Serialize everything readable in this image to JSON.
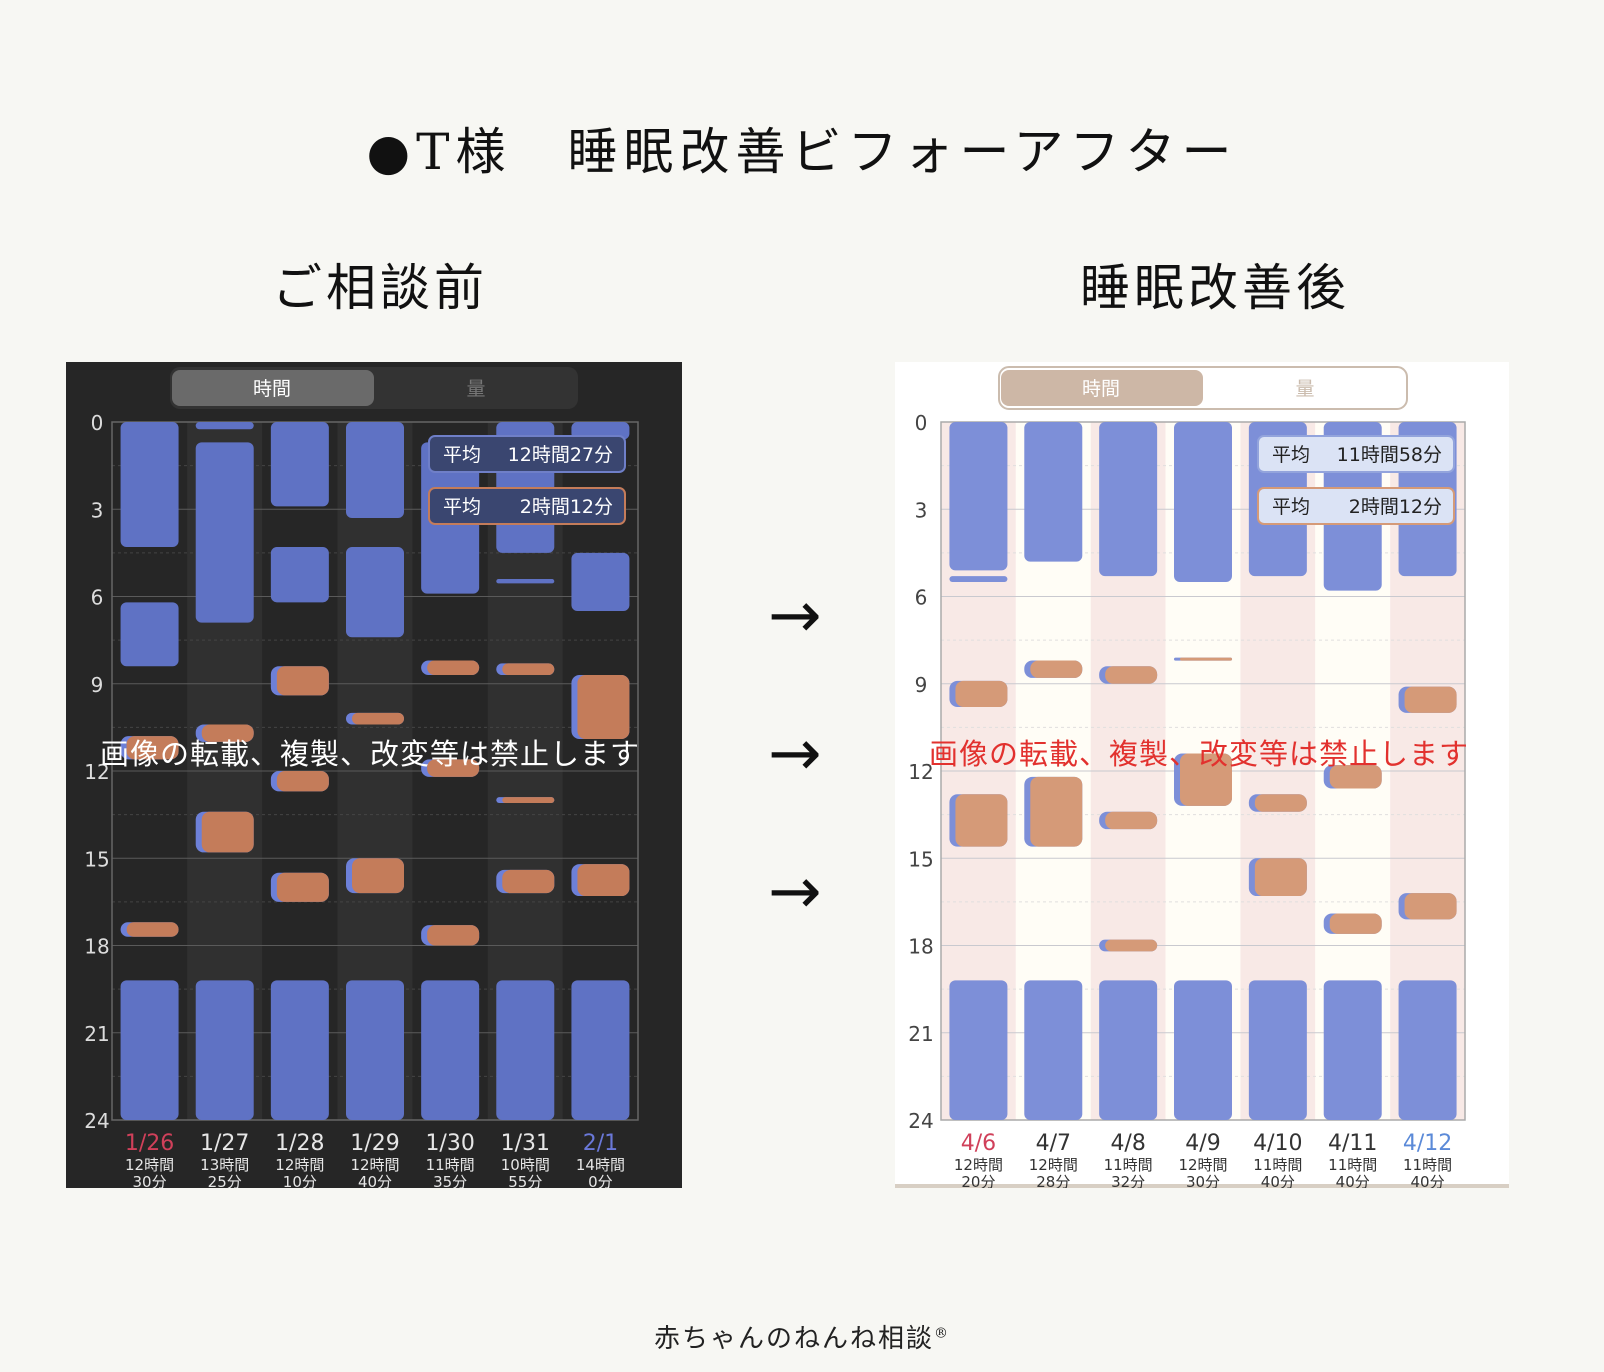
{
  "title": "●T様　睡眠改善ビフォーアフター",
  "before_label": "ご相談前",
  "after_label": "睡眠改善後",
  "watermark": "画像の転載、複製、改変等は禁止します",
  "footer": "赤ちゃんのねんね相談",
  "footer_mark": "®",
  "arrow_glyph": "→",
  "chart_data": [
    {
      "type": "bar",
      "theme": "dark",
      "tabs": [
        "時間",
        "量"
      ],
      "active_tab": "時間",
      "y_ticks": [
        "0",
        "3",
        "6",
        "9",
        "12",
        "15",
        "18",
        "21",
        "24"
      ],
      "ylim": [
        0,
        24
      ],
      "avg_sleep": {
        "label": "平均",
        "value": "12時間27分"
      },
      "avg_feed": {
        "label": "平均",
        "value": "2時間12分"
      },
      "colors": {
        "sleep": "#5f72c4",
        "feed": "#c47c5a",
        "feed_edge": "#6d80d8",
        "holiday_red": "#d0405a",
        "weekend_blue": "#6a78d8"
      },
      "days": [
        {
          "date": "1/26",
          "total": [
            "12時間",
            "30分"
          ],
          "date_color": "red",
          "sleep": [
            [
              0,
              4.3
            ],
            [
              6.2,
              8.4
            ],
            [
              19.2,
              24
            ]
          ],
          "feed": [
            [
              10.8,
              11.6
            ],
            [
              17.2,
              17.7
            ]
          ]
        },
        {
          "date": "1/27",
          "total": [
            "13時間",
            "25分"
          ],
          "date_color": "normal",
          "sleep": [
            [
              0,
              0.25
            ],
            [
              0.7,
              6.9
            ],
            [
              19.2,
              24
            ]
          ],
          "feed": [
            [
              10.4,
              11.0
            ],
            [
              13.4,
              14.8
            ]
          ]
        },
        {
          "date": "1/28",
          "total": [
            "12時間",
            "10分"
          ],
          "date_color": "normal",
          "sleep": [
            [
              0,
              2.9
            ],
            [
              4.3,
              6.2
            ],
            [
              19.2,
              24
            ]
          ],
          "feed": [
            [
              8.4,
              9.4
            ],
            [
              12.0,
              12.7
            ],
            [
              15.5,
              16.5
            ]
          ]
        },
        {
          "date": "1/29",
          "total": [
            "12時間",
            "40分"
          ],
          "date_color": "normal",
          "sleep": [
            [
              0,
              3.3
            ],
            [
              4.3,
              7.4
            ],
            [
              19.2,
              24
            ]
          ],
          "feed": [
            [
              10.0,
              10.4
            ],
            [
              15.0,
              16.2
            ]
          ]
        },
        {
          "date": "1/30",
          "total": [
            "11時間",
            "35分"
          ],
          "date_color": "normal",
          "sleep": [
            [
              0.7,
              5.9
            ],
            [
              19.2,
              24
            ]
          ],
          "feed": [
            [
              8.2,
              8.7
            ],
            [
              11.6,
              12.2
            ],
            [
              17.3,
              18.0
            ]
          ]
        },
        {
          "date": "1/31",
          "total": [
            "10時間",
            "55分"
          ],
          "date_color": "normal",
          "sleep": [
            [
              0,
              4.5
            ],
            [
              5.4,
              5.55
            ],
            [
              19.2,
              24
            ]
          ],
          "feed": [
            [
              8.3,
              8.7
            ],
            [
              12.9,
              13.1
            ],
            [
              15.4,
              16.2
            ]
          ]
        },
        {
          "date": "2/1",
          "total": [
            "14時間",
            "0分"
          ],
          "date_color": "blue",
          "sleep": [
            [
              0,
              0.6
            ],
            [
              4.5,
              6.5
            ],
            [
              19.2,
              24
            ]
          ],
          "feed": [
            [
              8.7,
              10.9
            ],
            [
              15.2,
              16.3
            ]
          ]
        }
      ]
    },
    {
      "type": "bar",
      "theme": "light",
      "tabs": [
        "時間",
        "量"
      ],
      "active_tab": "時間",
      "y_ticks": [
        "0",
        "3",
        "6",
        "9",
        "12",
        "15",
        "18",
        "21",
        "24"
      ],
      "ylim": [
        0,
        24
      ],
      "avg_sleep": {
        "label": "平均",
        "value": "11時間58分"
      },
      "avg_feed": {
        "label": "平均",
        "value": "2時間12分"
      },
      "colors": {
        "sleep": "#7d8fd8",
        "feed": "#d59a78",
        "feed_edge": "#7d8fd8",
        "holiday_red": "#d0405a",
        "weekend_blue": "#5b8ad8"
      },
      "days": [
        {
          "date": "4/6",
          "total": [
            "12時間",
            "20分"
          ],
          "date_color": "red",
          "sleep": [
            [
              0,
              5.1
            ],
            [
              5.3,
              5.5
            ],
            [
              19.2,
              24
            ]
          ],
          "feed": [
            [
              8.9,
              9.8
            ],
            [
              12.8,
              14.6
            ]
          ]
        },
        {
          "date": "4/7",
          "total": [
            "12時間",
            "28分"
          ],
          "date_color": "normal",
          "sleep": [
            [
              0,
              4.8
            ],
            [
              19.2,
              24
            ]
          ],
          "feed": [
            [
              8.2,
              8.8
            ],
            [
              12.2,
              14.6
            ]
          ]
        },
        {
          "date": "4/8",
          "total": [
            "11時間",
            "32分"
          ],
          "date_color": "normal",
          "sleep": [
            [
              0,
              5.3
            ],
            [
              19.2,
              24
            ]
          ],
          "feed": [
            [
              8.4,
              9.0
            ],
            [
              13.4,
              14.0
            ],
            [
              17.8,
              18.2
            ]
          ]
        },
        {
          "date": "4/9",
          "total": [
            "12時間",
            "30分"
          ],
          "date_color": "normal",
          "sleep": [
            [
              0,
              5.5
            ],
            [
              19.2,
              24
            ]
          ],
          "feed": [
            [
              8.1,
              8.15
            ],
            [
              11.4,
              13.2
            ]
          ]
        },
        {
          "date": "4/10",
          "total": [
            "11時間",
            "40分"
          ],
          "date_color": "normal",
          "sleep": [
            [
              0,
              5.3
            ],
            [
              19.2,
              24
            ]
          ],
          "feed": [
            [
              12.8,
              13.4
            ],
            [
              15.0,
              16.3
            ]
          ]
        },
        {
          "date": "4/11",
          "total": [
            "11時間",
            "40分"
          ],
          "date_color": "normal",
          "sleep": [
            [
              0,
              5.8
            ],
            [
              19.2,
              24
            ]
          ],
          "feed": [
            [
              11.8,
              12.6
            ],
            [
              16.9,
              17.6
            ]
          ]
        },
        {
          "date": "4/12",
          "total": [
            "11時間",
            "40分"
          ],
          "date_color": "blue",
          "sleep": [
            [
              0,
              5.3
            ],
            [
              19.2,
              24
            ]
          ],
          "feed": [
            [
              9.1,
              10.0
            ],
            [
              16.2,
              17.1
            ]
          ]
        }
      ]
    }
  ]
}
